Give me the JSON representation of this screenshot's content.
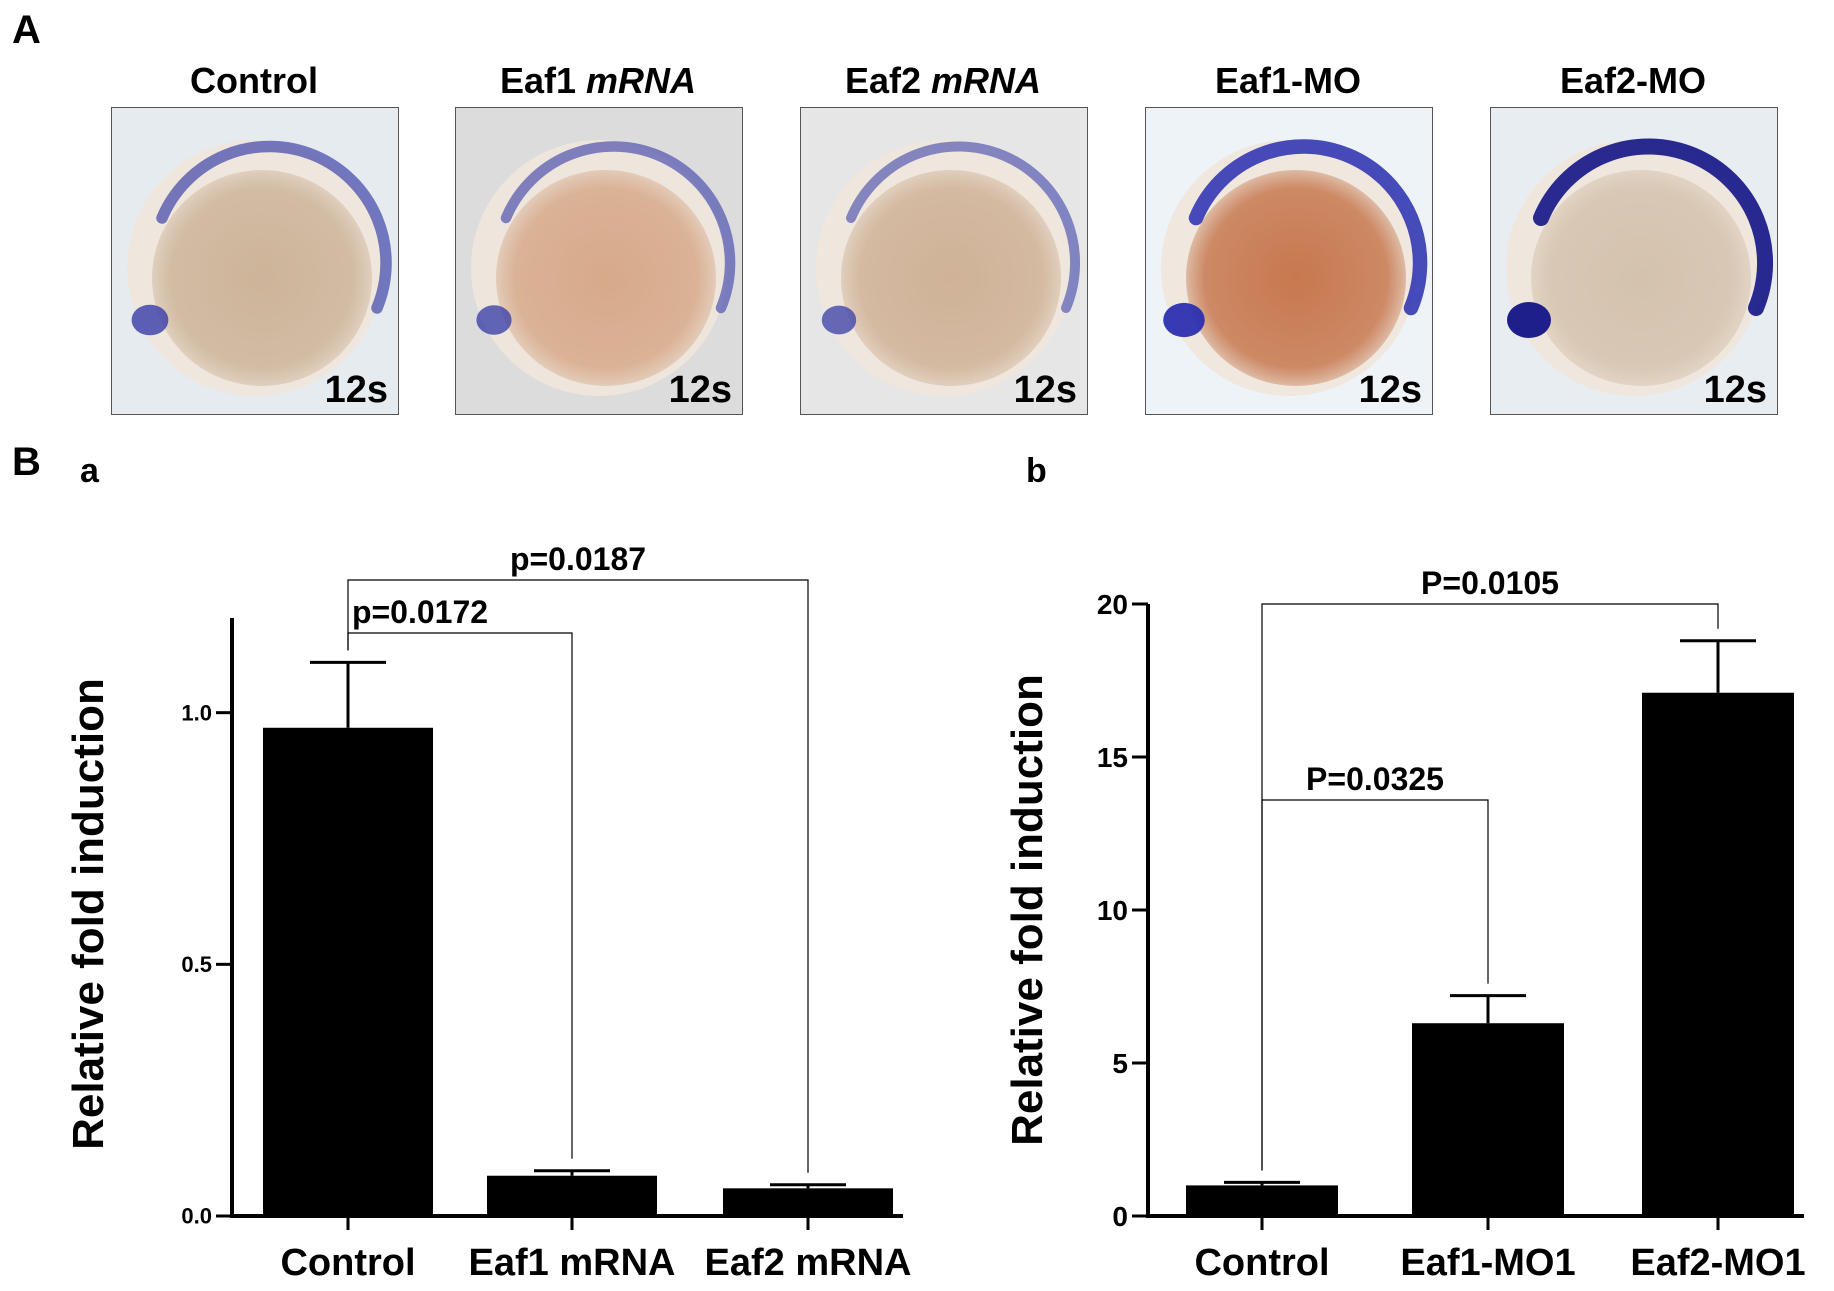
{
  "panel_a": {
    "letter": "A",
    "images": [
      {
        "title": "Control",
        "title_em": "",
        "stage": "12s",
        "bg": "#e6ebef",
        "yolk": "#cdb499",
        "stain": "#3a3fa8",
        "stain_strength": 0.55
      },
      {
        "title": "Eaf1 ",
        "title_em": "mRNA",
        "stage": "12s",
        "bg": "#dcdcdc",
        "yolk": "#d7a98a",
        "stain": "#3a3fa8",
        "stain_strength": 0.45
      },
      {
        "title": "Eaf2 ",
        "title_em": "mRNA",
        "stage": "12s",
        "bg": "#e6e6e6",
        "yolk": "#cfb297",
        "stain": "#3a3fa8",
        "stain_strength": 0.4
      },
      {
        "title": "Eaf1-MO",
        "title_em": "",
        "stage": "12s",
        "bg": "#eef3f8",
        "yolk": "#c7784f",
        "stain": "#2a2fb0",
        "stain_strength": 0.85
      },
      {
        "title": "Eaf2-MO",
        "title_em": "",
        "stage": "12s",
        "bg": "#e8edf2",
        "yolk": "#d4c2ad",
        "stain": "#1e1f8a",
        "stain_strength": 1.0
      }
    ]
  },
  "panel_b": {
    "letter": "B",
    "sub_a": "a",
    "sub_b": "b"
  },
  "chart_data": [
    {
      "type": "bar",
      "categories": [
        "Control",
        "Eaf1 mRNA",
        "Eaf2 mRNA"
      ],
      "values": [
        0.97,
        0.08,
        0.055
      ],
      "errors": [
        0.13,
        0.01,
        0.007
      ],
      "ylabel": "Relative fold induction",
      "ylim": [
        0,
        1.2
      ],
      "yticks": [
        0.0,
        0.5,
        1.0
      ],
      "ytick_labels": [
        "0.0",
        "0.5",
        "1.0"
      ],
      "bar_color": "#000000",
      "significance": [
        {
          "label": "p=0.0172",
          "from": 0,
          "to": 1
        },
        {
          "label": "p=0.0187",
          "from": 0,
          "to": 2
        }
      ]
    },
    {
      "type": "bar",
      "categories": [
        "Control",
        "Eaf1-MO1",
        "Eaf2-MO1"
      ],
      "values": [
        1.0,
        6.3,
        17.1
      ],
      "errors": [
        0.1,
        0.9,
        1.7
      ],
      "ylabel": "Relative fold induction",
      "ylim": [
        0,
        20
      ],
      "yticks": [
        0,
        5,
        10,
        15,
        20
      ],
      "ytick_labels": [
        "0",
        "5",
        "10",
        "15",
        "20"
      ],
      "bar_color": "#000000",
      "significance": [
        {
          "label": "P=0.0325",
          "from": 0,
          "to": 1
        },
        {
          "label": "P=0.0105",
          "from": 0,
          "to": 2
        }
      ]
    }
  ]
}
